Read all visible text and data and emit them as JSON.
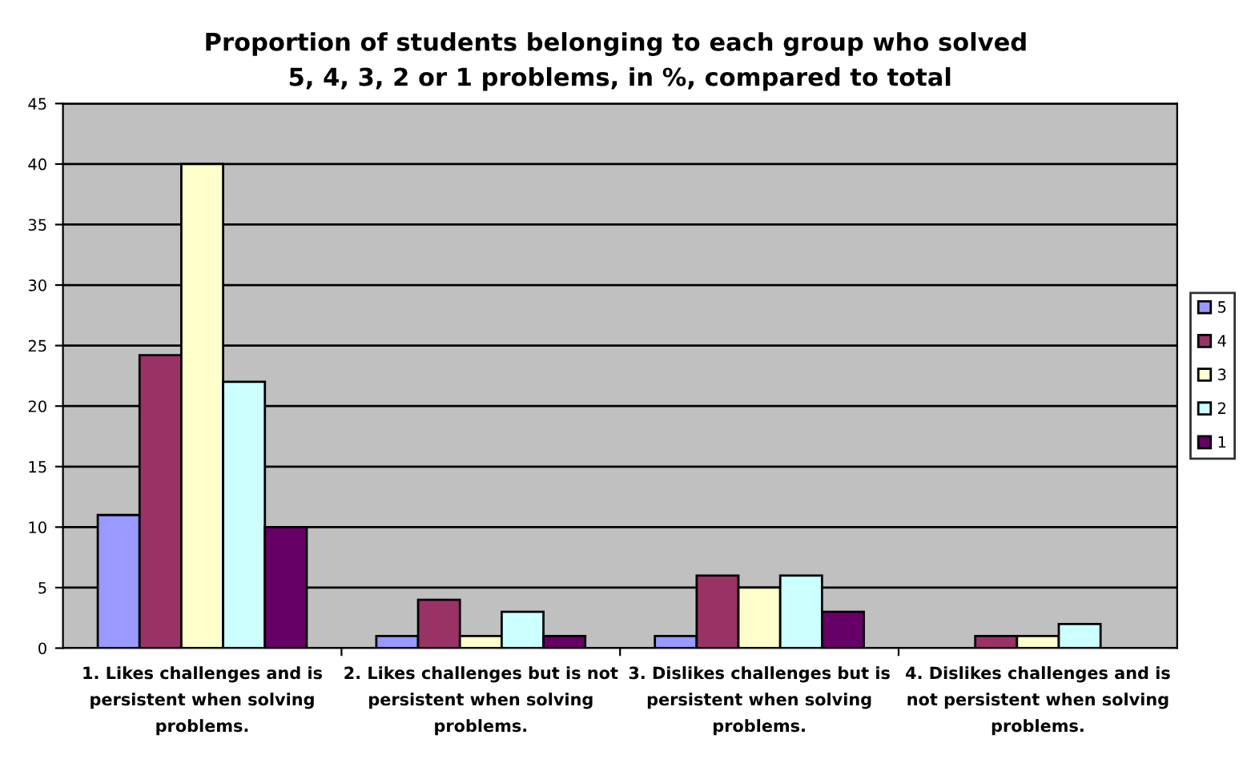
{
  "chart_data": {
    "type": "bar",
    "title": "Proportion of students belonging to each group who solved  5, 4, 3, 2 or 1 problems, in %, compared to total",
    "categories": [
      "1. Likes challenges and is persistent when solving problems.",
      "2. Likes challenges but is not persistent when solving problems.",
      "3. Dislikes challenges but is persistent when solving problems.",
      "4. Dislikes challenges and is not persistent when solving problems."
    ],
    "series": [
      {
        "name": "5",
        "color": "#9999ff",
        "values": [
          11,
          1,
          1,
          null
        ]
      },
      {
        "name": "4",
        "color": "#993366",
        "values": [
          24.2,
          4,
          6,
          1
        ]
      },
      {
        "name": "3",
        "color": "#ffffcc",
        "values": [
          40,
          1,
          5,
          1
        ]
      },
      {
        "name": "2",
        "color": "#ccffff",
        "values": [
          22,
          3,
          6,
          2
        ]
      },
      {
        "name": "1",
        "color": "#660066",
        "values": [
          10,
          1,
          3,
          null
        ]
      }
    ],
    "ylim": [
      0,
      45
    ],
    "yticks": [
      0,
      5,
      10,
      15,
      20,
      25,
      30,
      35,
      40,
      45
    ],
    "grid": "y",
    "legend": "right"
  }
}
